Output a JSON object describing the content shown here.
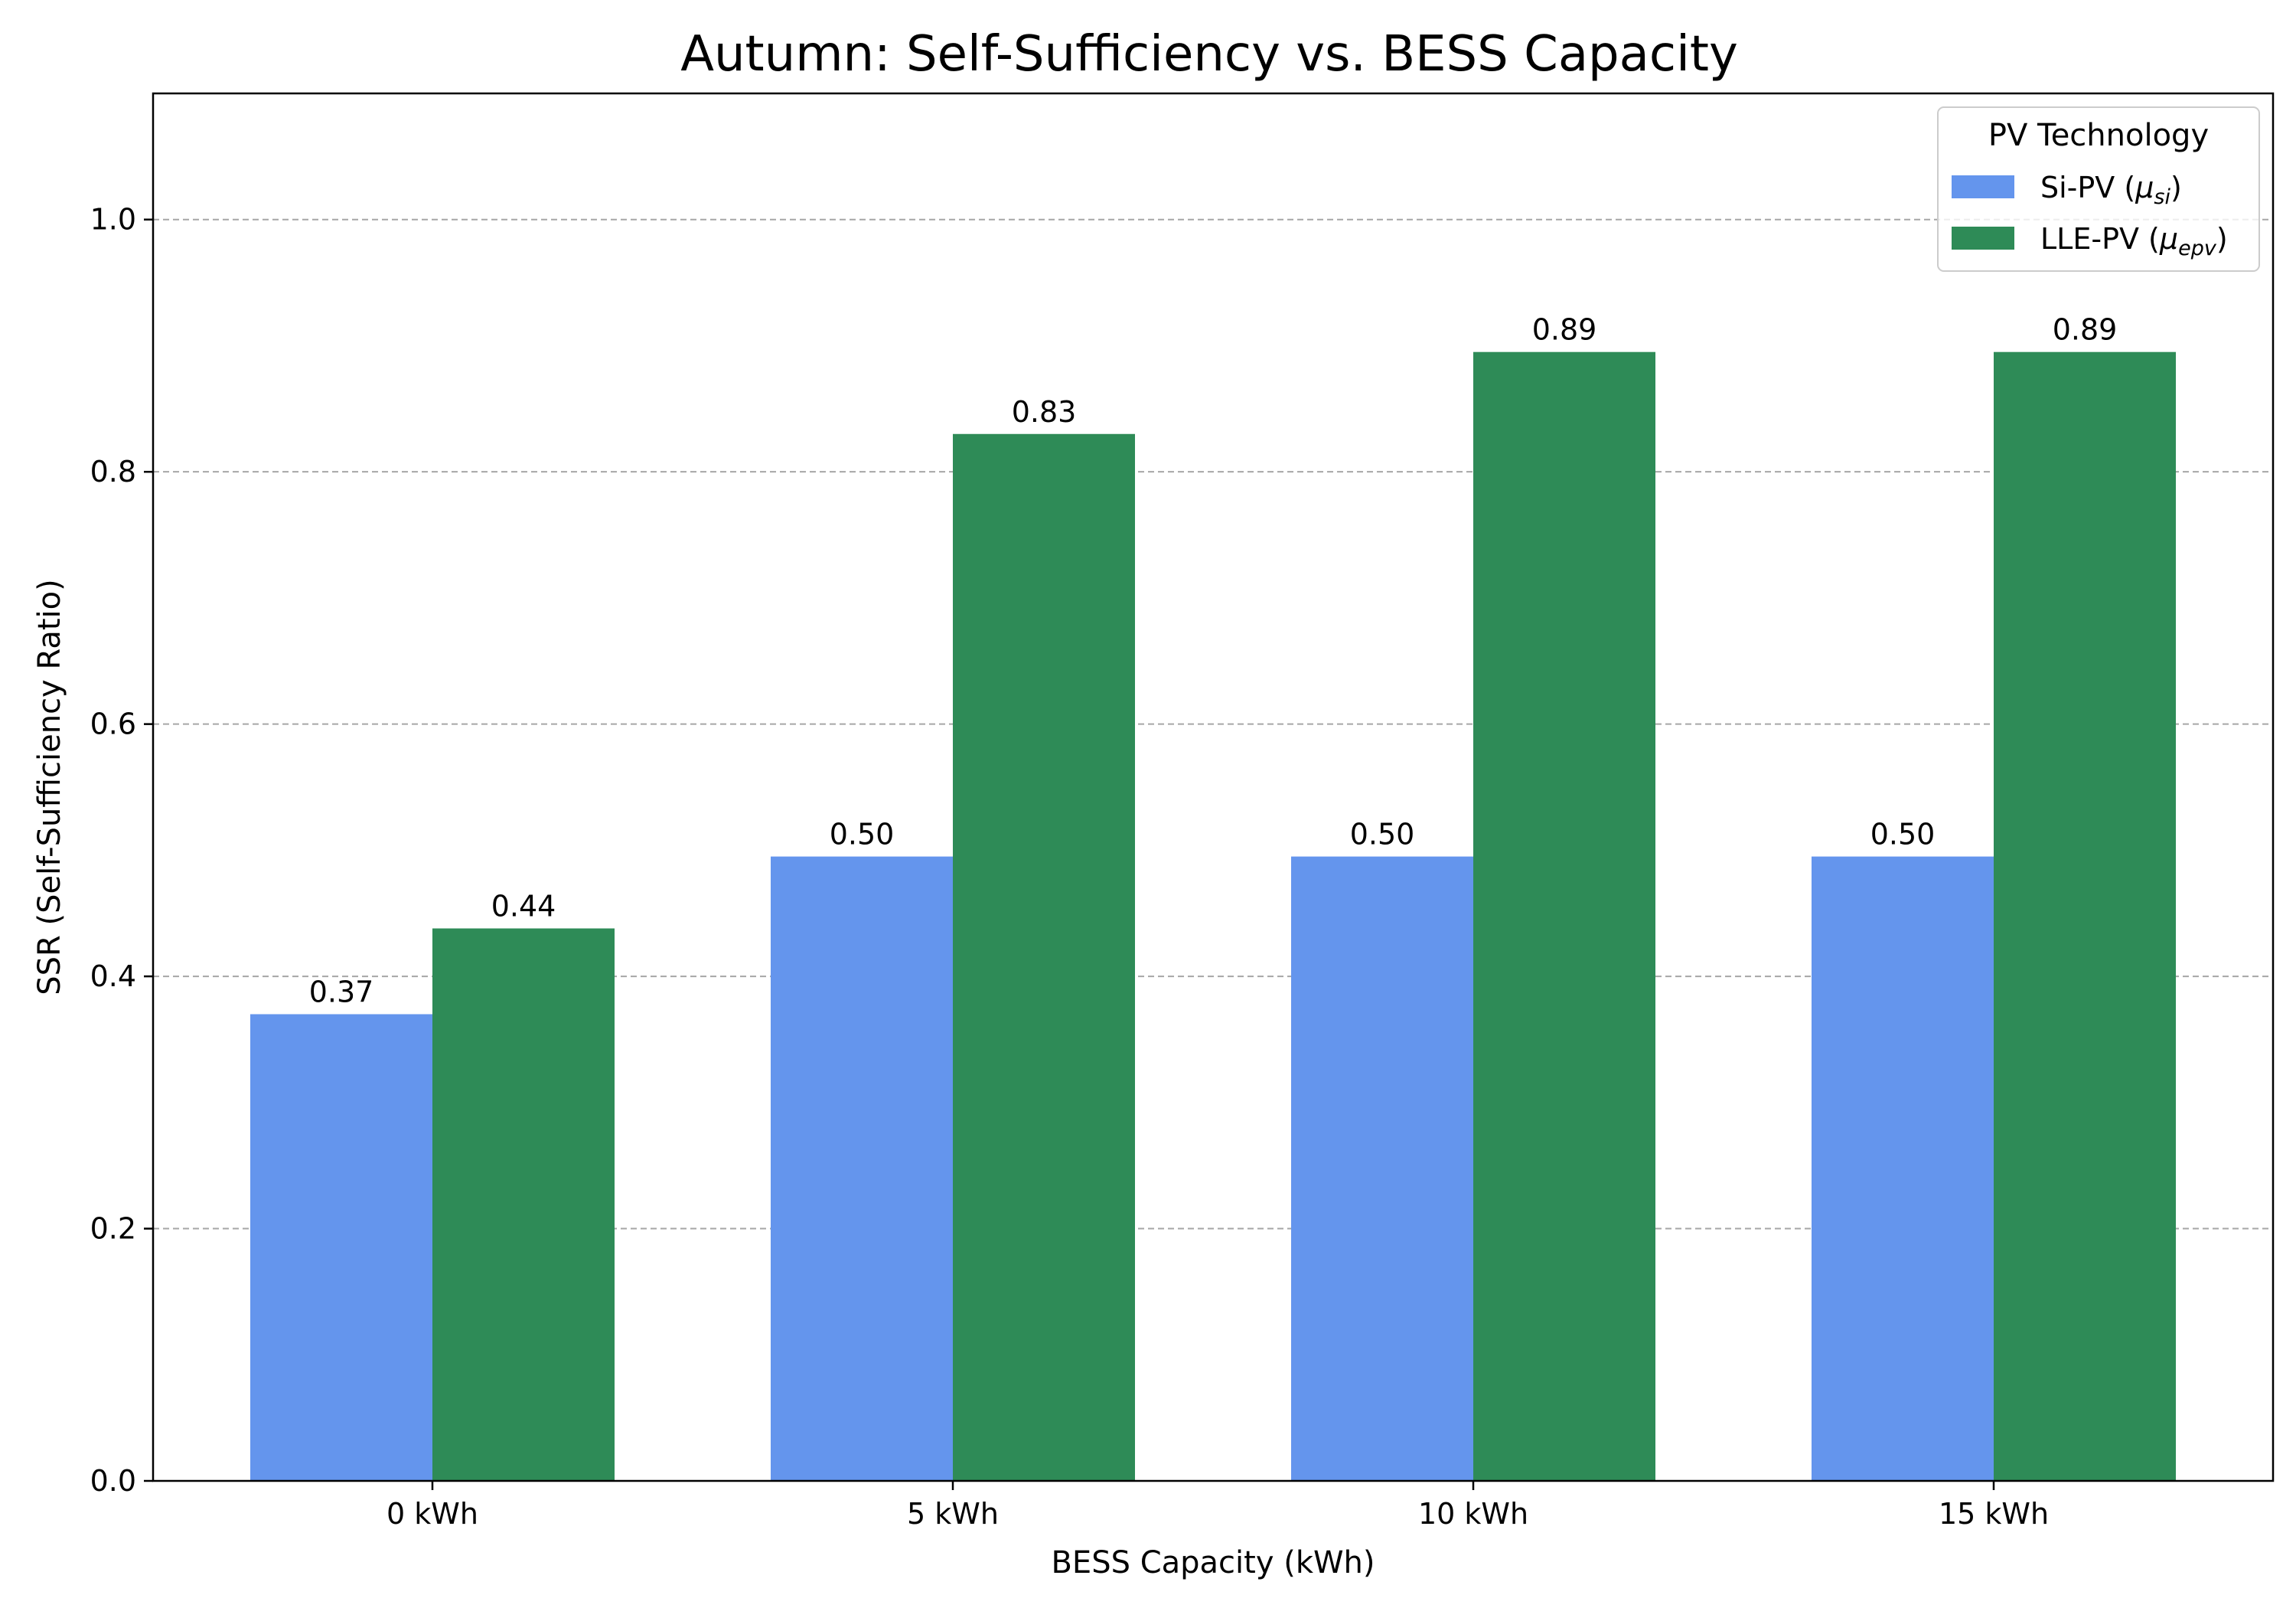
{
  "chart_data": {
    "type": "bar",
    "title": "Autumn: Self-Sufficiency vs. BESS Capacity",
    "xlabel": "BESS Capacity (kWh)",
    "ylabel": "SSR (Self-Sufficiency Ratio)",
    "categories": [
      "0 kWh",
      "5 kWh",
      "10 kWh",
      "15 kWh"
    ],
    "ylim": [
      0,
      1.1
    ],
    "yticks": [
      "0.0",
      "0.2",
      "0.4",
      "0.6",
      "0.8",
      "1.0"
    ],
    "grid": "y-dashed",
    "legend": {
      "title": "PV Technology",
      "placement": "top-right"
    },
    "series": [
      {
        "name": "Si-PV (μsi)",
        "name_base": "Si-PV (",
        "name_mu": "μ",
        "name_sub": "si",
        "name_end": ")",
        "color": "#6495ED",
        "values": [
          0.37,
          0.495,
          0.495,
          0.495
        ],
        "labels": [
          "0.37",
          "0.50",
          "0.50",
          "0.50"
        ]
      },
      {
        "name": "LLE-PV (μepv)",
        "name_base": "LLE-PV (",
        "name_mu": "μ",
        "name_sub": "epv",
        "name_end": ")",
        "color": "#2E8B57",
        "values": [
          0.438,
          0.83,
          0.895,
          0.895
        ],
        "labels": [
          "0.44",
          "0.83",
          "0.89",
          "0.89"
        ]
      }
    ]
  }
}
